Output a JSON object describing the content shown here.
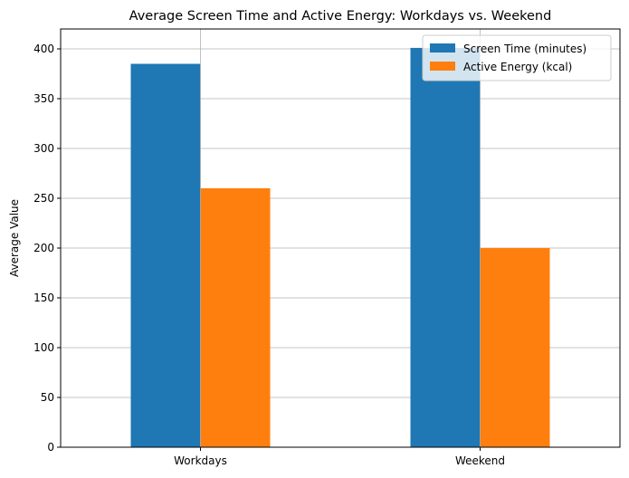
{
  "chart_data": {
    "type": "bar",
    "title": "Average Screen Time and Active Energy: Workdays vs. Weekend",
    "xlabel": "",
    "ylabel": "Average Value",
    "categories": [
      "Workdays",
      "Weekend"
    ],
    "series": [
      {
        "name": "Screen Time (minutes)",
        "color": "#1f77b4",
        "values": [
          385,
          401
        ]
      },
      {
        "name": "Active Energy (kcal)",
        "color": "#ff7f0e",
        "values": [
          260,
          200
        ]
      }
    ],
    "ylim": [
      0,
      420
    ],
    "yticks": [
      0,
      50,
      100,
      150,
      200,
      250,
      300,
      350,
      400
    ],
    "grid": true,
    "legend_position": "top-right"
  }
}
